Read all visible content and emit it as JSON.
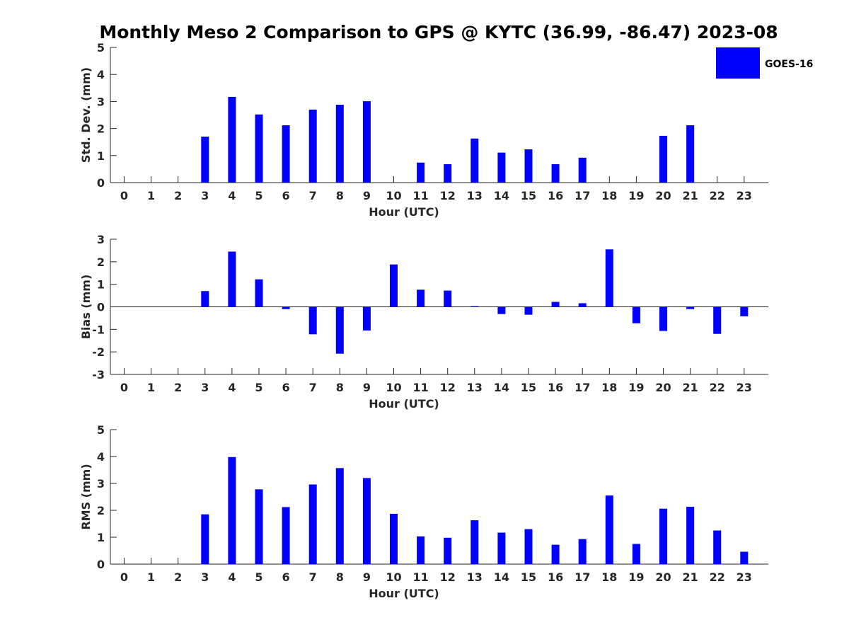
{
  "chart_data": {
    "type": "bar",
    "title": "Monthly Meso 2 Comparison to GPS @ KYTC (36.99, -86.47) 2023-08",
    "legend": {
      "label": "GOES-16",
      "color": "#0000ff",
      "placement": "top-right"
    },
    "bar_color": "#0000ff",
    "categories": [
      "0",
      "1",
      "2",
      "3",
      "4",
      "5",
      "6",
      "7",
      "8",
      "9",
      "10",
      "11",
      "12",
      "13",
      "14",
      "15",
      "16",
      "17",
      "18",
      "19",
      "20",
      "21",
      "22",
      "23"
    ],
    "panels": [
      {
        "ylabel": "Std. Dev. (mm)",
        "xlabel": "Hour (UTC)",
        "ylim": [
          0,
          5
        ],
        "yticks": [
          "0",
          "1",
          "2",
          "3",
          "4",
          "5"
        ],
        "values": [
          null,
          null,
          null,
          1.7,
          3.17,
          2.52,
          2.12,
          2.7,
          2.88,
          3.01,
          null,
          0.74,
          0.68,
          1.63,
          1.11,
          1.23,
          0.68,
          0.92,
          null,
          null,
          1.73,
          2.12,
          null,
          null
        ]
      },
      {
        "ylabel": "Bias (mm)",
        "xlabel": "Hour (UTC)",
        "ylim": [
          -3,
          3
        ],
        "yticks": [
          "-3",
          "-2",
          "-1",
          "0",
          "1",
          "2",
          "3"
        ],
        "values": [
          null,
          null,
          null,
          0.7,
          2.45,
          1.22,
          -0.1,
          -1.22,
          -2.08,
          -1.05,
          1.88,
          0.76,
          0.72,
          0.03,
          -0.32,
          -0.35,
          0.22,
          0.16,
          2.55,
          -0.73,
          -1.07,
          -0.1,
          -1.2,
          -0.42
        ]
      },
      {
        "ylabel": "RMS (mm)",
        "xlabel": "Hour (UTC)",
        "ylim": [
          0,
          5
        ],
        "yticks": [
          "0",
          "1",
          "2",
          "3",
          "4",
          "5"
        ],
        "values": [
          null,
          null,
          null,
          1.85,
          3.98,
          2.78,
          2.12,
          2.96,
          3.57,
          3.2,
          1.87,
          1.03,
          0.98,
          1.63,
          1.17,
          1.3,
          0.72,
          0.93,
          2.55,
          0.75,
          2.06,
          2.13,
          1.25,
          0.46
        ]
      }
    ]
  }
}
